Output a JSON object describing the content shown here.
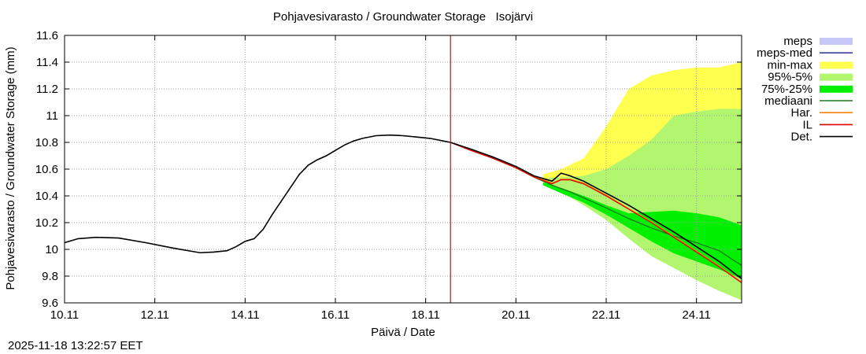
{
  "chart_data": {
    "type": "line",
    "title": "Pohjavesivarasto / Groundwater Storage   Isojärvi",
    "xlabel": "Päivä / Date",
    "ylabel": "Pohjavesivarasto / Groundwater Storage (mm)",
    "xlim": [
      0,
      15
    ],
    "ylim": [
      9.6,
      11.6
    ],
    "x_ticks": [
      0,
      2,
      4,
      6,
      8,
      10,
      12,
      14
    ],
    "x_tick_labels": [
      "10.11",
      "12.11",
      "14.11",
      "16.11",
      "18.11",
      "20.11",
      "22.11",
      "24.11"
    ],
    "y_ticks": [
      9.6,
      9.8,
      10,
      10.2,
      10.4,
      10.6,
      10.8,
      11,
      11.2,
      11.4,
      11.6
    ],
    "y_tick_labels": [
      "9.6",
      "9.8",
      "10",
      "10.2",
      "10.4",
      "10.6",
      "10.8",
      "11",
      "11.2",
      "11.4",
      "11.6"
    ],
    "grid": true,
    "now_x": 8.55,
    "legend_position": "right",
    "legend": [
      {
        "label": "meps",
        "kind": "box",
        "color": "#c8c8f8"
      },
      {
        "label": "meps-med",
        "kind": "line",
        "color": "#3c3ca0"
      },
      {
        "label": "min-max",
        "kind": "box",
        "color": "#ffff50"
      },
      {
        "label": "95%-5%",
        "kind": "box",
        "color": "#b2f670"
      },
      {
        "label": "75%-25%",
        "kind": "box",
        "color": "#00f000"
      },
      {
        "label": "mediaani",
        "kind": "line",
        "color": "#1a7a1a"
      },
      {
        "label": "Har.",
        "kind": "line",
        "color": "#ff8000"
      },
      {
        "label": "IL",
        "kind": "line",
        "color": "#e00000"
      },
      {
        "label": "Det.",
        "kind": "line",
        "color": "#000000"
      }
    ],
    "series": [
      {
        "name": "observed",
        "color": "#000000",
        "x": [
          0,
          0.3,
          0.7,
          1.2,
          1.8,
          2.4,
          3.0,
          3.3,
          3.6,
          3.8,
          4.0,
          4.2,
          4.4,
          4.6,
          4.8,
          5.0,
          5.2,
          5.4,
          5.6,
          5.8,
          6.0,
          6.2,
          6.4,
          6.6,
          6.9,
          7.2,
          7.5,
          7.8,
          8.1,
          8.4,
          8.55
        ],
        "values": [
          10.05,
          10.08,
          10.09,
          10.085,
          10.05,
          10.01,
          9.975,
          9.98,
          9.99,
          10.02,
          10.06,
          10.08,
          10.15,
          10.26,
          10.36,
          10.46,
          10.56,
          10.63,
          10.67,
          10.7,
          10.74,
          10.78,
          10.81,
          10.83,
          10.85,
          10.855,
          10.85,
          10.84,
          10.83,
          10.81,
          10.8
        ]
      },
      {
        "name": "Det.",
        "color": "#000000",
        "x": [
          8.55,
          9.0,
          9.5,
          10.0,
          10.4,
          10.8,
          11.0,
          11.2,
          11.5,
          12.0,
          12.5,
          13.0,
          13.5,
          14.0,
          14.5,
          15.0
        ],
        "values": [
          10.8,
          10.75,
          10.69,
          10.62,
          10.55,
          10.51,
          10.57,
          10.55,
          10.51,
          10.42,
          10.33,
          10.23,
          10.13,
          10.02,
          9.91,
          9.78
        ]
      },
      {
        "name": "IL",
        "color": "#e00000",
        "x": [
          8.55,
          9.0,
          9.5,
          10.0,
          10.4,
          10.8,
          11.0,
          11.2,
          11.5,
          12.0,
          12.5,
          13.0,
          13.5,
          14.0,
          14.5,
          15.0
        ],
        "values": [
          10.8,
          10.74,
          10.68,
          10.61,
          10.54,
          10.49,
          10.52,
          10.52,
          10.49,
          10.4,
          10.3,
          10.2,
          10.09,
          9.98,
          9.87,
          9.75
        ]
      },
      {
        "name": "Har.",
        "color": "#ff8000",
        "x": [
          8.55,
          9.0,
          9.5,
          10.0,
          10.4,
          10.8,
          11.0,
          11.2,
          11.5,
          12.0,
          12.5,
          13.0,
          13.5,
          14.0,
          14.5,
          15.0
        ],
        "values": [
          10.8,
          10.745,
          10.685,
          10.615,
          10.545,
          10.495,
          10.525,
          10.525,
          10.495,
          10.405,
          10.305,
          10.205,
          10.095,
          9.985,
          9.875,
          9.755
        ]
      },
      {
        "name": "mediaani",
        "color": "#1a7a1a",
        "x": [
          8.55,
          9.0,
          9.5,
          10.0,
          10.4,
          10.8,
          11.2,
          11.6,
          12.0,
          12.5,
          13.0,
          13.5,
          14.0,
          14.5,
          15.0
        ],
        "values": [
          10.8,
          10.74,
          10.68,
          10.61,
          10.54,
          10.48,
          10.43,
          10.37,
          10.31,
          10.23,
          10.16,
          10.1,
          10.05,
          9.99,
          9.88
        ]
      }
    ],
    "bands": [
      {
        "name": "min-max",
        "color": "#ffff50",
        "x": [
          10.6,
          11.0,
          11.5,
          12.0,
          12.5,
          13.0,
          13.5,
          14.0,
          14.5,
          15.0
        ],
        "upper": [
          10.56,
          10.6,
          10.68,
          10.92,
          11.2,
          11.3,
          11.34,
          11.36,
          11.36,
          11.4
        ],
        "lower": [
          10.52,
          10.45,
          10.35,
          10.23,
          10.1,
          9.98,
          9.88,
          9.78,
          9.7,
          9.62
        ]
      },
      {
        "name": "95%-5%",
        "color": "#b2f670",
        "x": [
          10.6,
          11.0,
          11.5,
          12.0,
          12.5,
          13.0,
          13.5,
          14.0,
          14.5,
          15.0
        ],
        "upper": [
          10.53,
          10.54,
          10.55,
          10.6,
          10.7,
          10.82,
          11.0,
          11.03,
          11.05,
          11.05
        ],
        "lower": [
          10.5,
          10.43,
          10.33,
          10.22,
          10.08,
          9.95,
          9.86,
          9.77,
          9.69,
          9.62
        ]
      },
      {
        "name": "75%-25%",
        "color": "#00f000",
        "x": [
          10.6,
          11.0,
          11.5,
          12.0,
          12.5,
          13.0,
          13.5,
          14.0,
          14.5,
          15.0
        ],
        "upper": [
          10.5,
          10.46,
          10.4,
          10.33,
          10.27,
          10.28,
          10.29,
          10.27,
          10.24,
          10.18
        ],
        "lower": [
          10.48,
          10.42,
          10.35,
          10.26,
          10.16,
          10.06,
          9.97,
          9.91,
          9.85,
          9.78
        ]
      }
    ]
  },
  "footer": {
    "timestamp": "2025-11-18 13:22:57 EET"
  }
}
